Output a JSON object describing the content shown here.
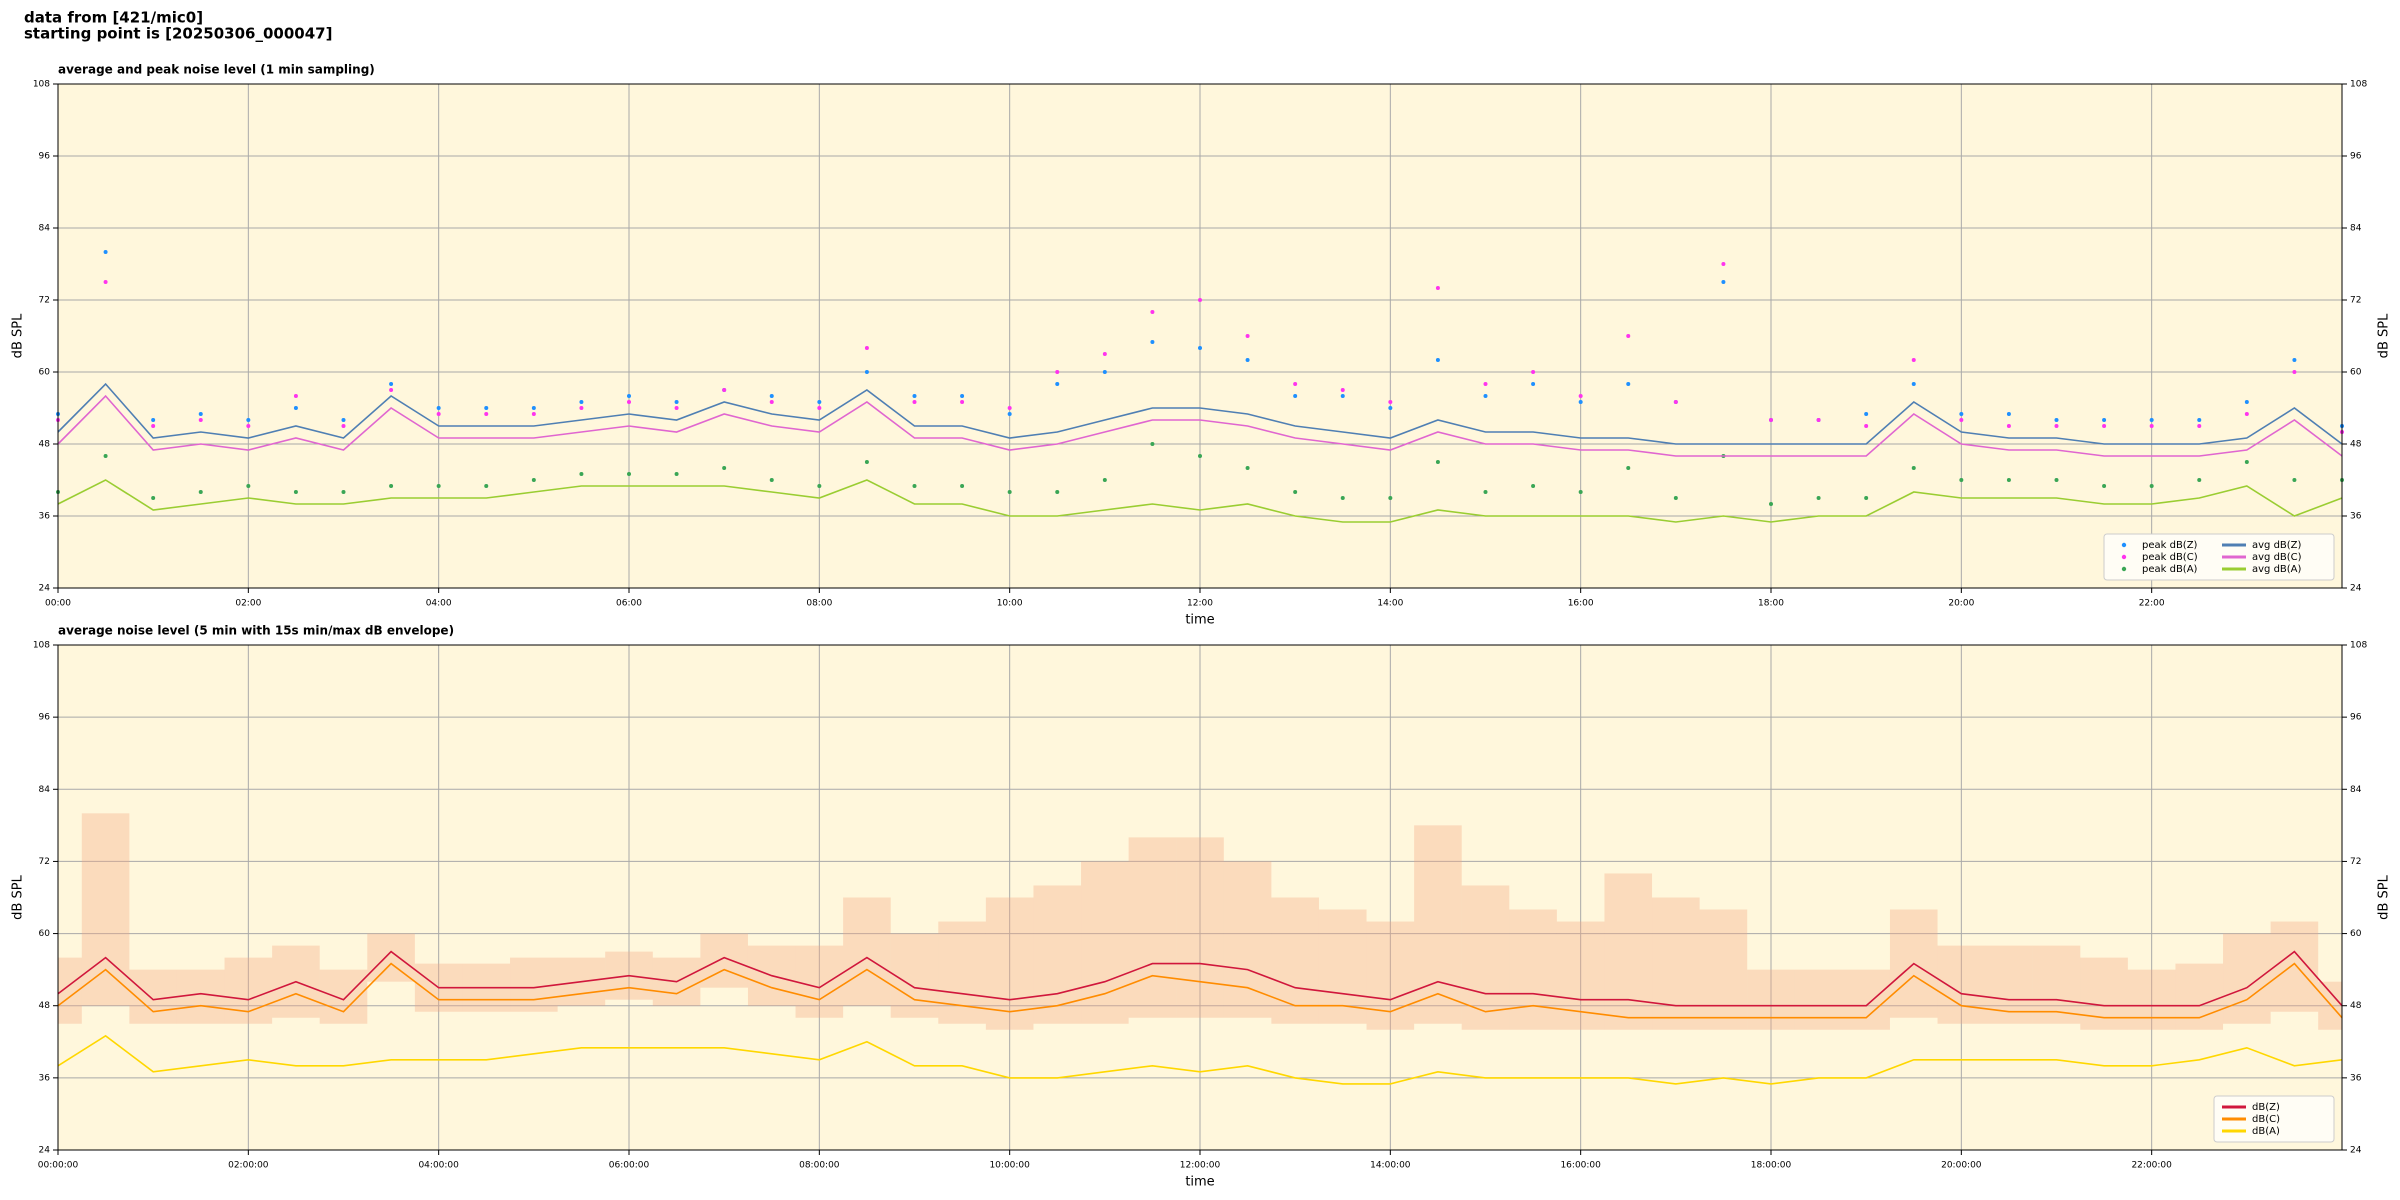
{
  "header": {
    "lines": [
      "data from [421/mic0]",
      "starting point is [20250306_000047]"
    ]
  },
  "chart_data": [
    {
      "type": "line",
      "title": "average and peak noise level (1 min sampling)",
      "xlabel": "time",
      "ylabel": "dB SPL",
      "y2label": "dB SPL",
      "background": "#fff7dc",
      "grid": true,
      "legend": "lower right",
      "legend_columns": 2,
      "xlim": [
        0,
        24
      ],
      "xticks": [
        {
          "value": 0,
          "label": "00:00"
        },
        {
          "value": 2,
          "label": "02:00"
        },
        {
          "value": 4,
          "label": "04:00"
        },
        {
          "value": 6,
          "label": "06:00"
        },
        {
          "value": 8,
          "label": "08:00"
        },
        {
          "value": 10,
          "label": "10:00"
        },
        {
          "value": 12,
          "label": "12:00"
        },
        {
          "value": 14,
          "label": "14:00"
        },
        {
          "value": 16,
          "label": "16:00"
        },
        {
          "value": 18,
          "label": "18:00"
        },
        {
          "value": 20,
          "label": "20:00"
        },
        {
          "value": 22,
          "label": "22:00"
        }
      ],
      "ylim": [
        24,
        108
      ],
      "yticks": [
        24,
        36,
        48,
        60,
        72,
        84,
        96,
        108
      ],
      "y2lim": [
        24,
        108
      ],
      "y2ticks": [
        24,
        36,
        48,
        60,
        72,
        84,
        96,
        108
      ],
      "x": [
        0,
        0.5,
        1,
        1.5,
        2,
        2.5,
        3,
        3.5,
        4,
        4.5,
        5,
        5.5,
        6,
        6.5,
        7,
        7.5,
        8,
        8.5,
        9,
        9.5,
        10,
        10.5,
        11,
        11.5,
        12,
        12.5,
        13,
        13.5,
        14,
        14.5,
        15,
        15.5,
        16,
        16.5,
        17,
        17.5,
        18,
        18.5,
        19,
        19.5,
        20,
        20.5,
        21,
        21.5,
        22,
        22.5,
        23,
        23.5,
        24
      ],
      "series": [
        {
          "name": "peak dB(Z)",
          "style": "points",
          "color": "#1e90ff",
          "values": [
            53,
            80,
            52,
            53,
            52,
            54,
            52,
            58,
            54,
            54,
            54,
            55,
            56,
            55,
            57,
            56,
            55,
            60,
            56,
            56,
            53,
            58,
            60,
            65,
            64,
            62,
            56,
            56,
            54,
            62,
            56,
            58,
            55,
            58,
            55,
            75,
            52,
            52,
            53,
            58,
            53,
            53,
            52,
            52,
            52,
            52,
            55,
            62,
            51
          ]
        },
        {
          "name": "peak dB(C)",
          "style": "points",
          "color": "#ff33ee",
          "values": [
            52,
            75,
            51,
            52,
            51,
            56,
            51,
            57,
            53,
            53,
            53,
            54,
            55,
            54,
            57,
            55,
            54,
            64,
            55,
            55,
            54,
            60,
            63,
            70,
            72,
            66,
            58,
            57,
            55,
            74,
            58,
            60,
            56,
            66,
            55,
            78,
            52,
            52,
            51,
            62,
            52,
            51,
            51,
            51,
            51,
            51,
            53,
            60,
            50
          ]
        },
        {
          "name": "peak dB(A)",
          "style": "points",
          "color": "#3aa655",
          "values": [
            40,
            46,
            39,
            40,
            41,
            40,
            40,
            41,
            41,
            41,
            42,
            43,
            43,
            43,
            44,
            42,
            41,
            45,
            41,
            41,
            40,
            40,
            42,
            48,
            46,
            44,
            40,
            39,
            39,
            45,
            40,
            41,
            40,
            44,
            39,
            46,
            38,
            39,
            39,
            44,
            42,
            42,
            42,
            41,
            41,
            42,
            45,
            42,
            42
          ]
        },
        {
          "name": "avg dB(Z)",
          "style": "line",
          "color": "#4f7fb3",
          "values": [
            50,
            58,
            49,
            50,
            49,
            51,
            49,
            56,
            51,
            51,
            51,
            52,
            53,
            52,
            55,
            53,
            52,
            57,
            51,
            51,
            49,
            50,
            52,
            54,
            54,
            53,
            51,
            50,
            49,
            52,
            50,
            50,
            49,
            49,
            48,
            48,
            48,
            48,
            48,
            55,
            50,
            49,
            49,
            48,
            48,
            48,
            49,
            54,
            48
          ]
        },
        {
          "name": "avg dB(C)",
          "style": "line",
          "color": "#e066d0",
          "values": [
            48,
            56,
            47,
            48,
            47,
            49,
            47,
            54,
            49,
            49,
            49,
            50,
            51,
            50,
            53,
            51,
            50,
            55,
            49,
            49,
            47,
            48,
            50,
            52,
            52,
            51,
            49,
            48,
            47,
            50,
            48,
            48,
            47,
            47,
            46,
            46,
            46,
            46,
            46,
            53,
            48,
            47,
            47,
            46,
            46,
            46,
            47,
            52,
            46
          ]
        },
        {
          "name": "avg dB(A)",
          "style": "line",
          "color": "#9acd32",
          "values": [
            38,
            42,
            37,
            38,
            39,
            38,
            38,
            39,
            39,
            39,
            40,
            41,
            41,
            41,
            41,
            40,
            39,
            42,
            38,
            38,
            36,
            36,
            37,
            38,
            37,
            38,
            36,
            35,
            35,
            37,
            36,
            36,
            36,
            36,
            35,
            36,
            35,
            36,
            36,
            40,
            39,
            39,
            39,
            38,
            38,
            39,
            41,
            36,
            39
          ]
        }
      ]
    },
    {
      "type": "line",
      "title": "average noise level (5 min with 15s min/max dB envelope)",
      "xlabel": "time",
      "ylabel": "dB SPL",
      "y2label": "dB SPL",
      "background": "#fff7dc",
      "grid": true,
      "legend": "lower right",
      "legend_columns": 1,
      "xlim": [
        0,
        24
      ],
      "xticks": [
        {
          "value": 0,
          "label": "00:00:00"
        },
        {
          "value": 2,
          "label": "02:00:00"
        },
        {
          "value": 4,
          "label": "04:00:00"
        },
        {
          "value": 6,
          "label": "06:00:00"
        },
        {
          "value": 8,
          "label": "08:00:00"
        },
        {
          "value": 10,
          "label": "10:00:00"
        },
        {
          "value": 12,
          "label": "12:00:00"
        },
        {
          "value": 14,
          "label": "14:00:00"
        },
        {
          "value": 16,
          "label": "16:00:00"
        },
        {
          "value": 18,
          "label": "18:00:00"
        },
        {
          "value": 20,
          "label": "20:00:00"
        },
        {
          "value": 22,
          "label": "22:00:00"
        }
      ],
      "ylim": [
        24,
        108
      ],
      "yticks": [
        24,
        36,
        48,
        60,
        72,
        84,
        96,
        108
      ],
      "y2lim": [
        24,
        108
      ],
      "y2ticks": [
        24,
        36,
        48,
        60,
        72,
        84,
        96,
        108
      ],
      "x": [
        0,
        0.5,
        1,
        1.5,
        2,
        2.5,
        3,
        3.5,
        4,
        4.5,
        5,
        5.5,
        6,
        6.5,
        7,
        7.5,
        8,
        8.5,
        9,
        9.5,
        10,
        10.5,
        11,
        11.5,
        12,
        12.5,
        13,
        13.5,
        14,
        14.5,
        15,
        15.5,
        16,
        16.5,
        17,
        17.5,
        18,
        18.5,
        19,
        19.5,
        20,
        20.5,
        21,
        21.5,
        22,
        22.5,
        23,
        23.5,
        24
      ],
      "envelope": {
        "color": "#f4a582",
        "low": [
          45,
          48,
          45,
          45,
          45,
          46,
          45,
          52,
          47,
          47,
          47,
          48,
          49,
          48,
          51,
          48,
          46,
          48,
          46,
          45,
          44,
          45,
          45,
          46,
          46,
          46,
          45,
          45,
          44,
          45,
          44,
          44,
          44,
          44,
          44,
          44,
          44,
          44,
          44,
          46,
          45,
          45,
          45,
          44,
          44,
          44,
          45,
          47,
          44
        ],
        "high": [
          56,
          80,
          54,
          54,
          56,
          58,
          54,
          60,
          55,
          55,
          56,
          56,
          57,
          56,
          60,
          58,
          58,
          66,
          60,
          62,
          66,
          68,
          72,
          76,
          76,
          72,
          66,
          64,
          62,
          78,
          68,
          64,
          62,
          70,
          66,
          64,
          54,
          54,
          54,
          64,
          58,
          58,
          58,
          56,
          54,
          55,
          60,
          62,
          52
        ]
      },
      "series": [
        {
          "name": "dB(Z)",
          "style": "line",
          "color": "#d0173c",
          "values": [
            50,
            56,
            49,
            50,
            49,
            52,
            49,
            57,
            51,
            51,
            51,
            52,
            53,
            52,
            56,
            53,
            51,
            56,
            51,
            50,
            49,
            50,
            52,
            55,
            55,
            54,
            51,
            50,
            49,
            52,
            50,
            50,
            49,
            49,
            48,
            48,
            48,
            48,
            48,
            55,
            50,
            49,
            49,
            48,
            48,
            48,
            51,
            57,
            48
          ]
        },
        {
          "name": "dB(C)",
          "style": "line",
          "color": "#ff8c00",
          "values": [
            48,
            54,
            47,
            48,
            47,
            50,
            47,
            55,
            49,
            49,
            49,
            50,
            51,
            50,
            54,
            51,
            49,
            54,
            49,
            48,
            47,
            48,
            50,
            53,
            52,
            51,
            48,
            48,
            47,
            50,
            47,
            48,
            47,
            46,
            46,
            46,
            46,
            46,
            46,
            53,
            48,
            47,
            47,
            46,
            46,
            46,
            49,
            55,
            46
          ]
        },
        {
          "name": "dB(A)",
          "style": "line",
          "color": "#ffd700",
          "values": [
            38,
            43,
            37,
            38,
            39,
            38,
            38,
            39,
            39,
            39,
            40,
            41,
            41,
            41,
            41,
            40,
            39,
            42,
            38,
            38,
            36,
            36,
            37,
            38,
            37,
            38,
            36,
            35,
            35,
            37,
            36,
            36,
            36,
            36,
            35,
            36,
            35,
            36,
            36,
            39,
            39,
            39,
            39,
            38,
            38,
            39,
            41,
            38,
            39
          ]
        }
      ]
    }
  ]
}
